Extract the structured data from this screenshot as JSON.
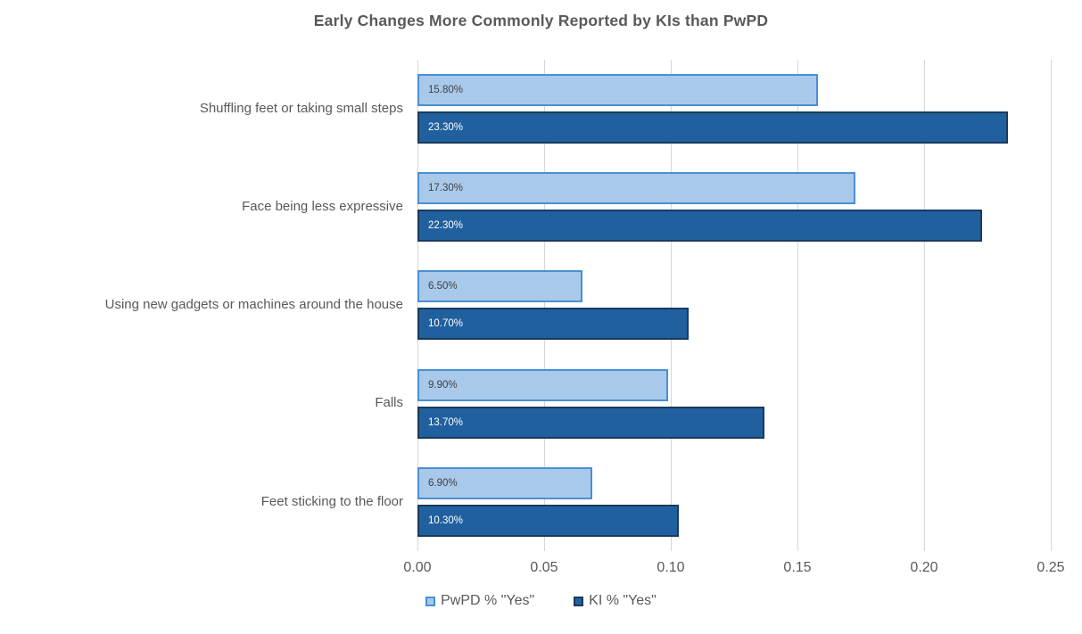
{
  "chart_data": {
    "type": "bar",
    "orientation": "horizontal",
    "title": "Early Changes More Commonly Reported by KIs than PwPD",
    "categories": [
      "Shuffling feet or taking small steps",
      "Face being less expressive",
      "Using new gadgets or machines around the house",
      "Falls",
      "Feet sticking to the floor"
    ],
    "series": [
      {
        "name": "PwPD % \"Yes\"",
        "values": [
          0.158,
          0.173,
          0.065,
          0.099,
          0.069
        ],
        "data_labels": [
          "15.80%",
          "17.30%",
          "6.50%",
          "9.90%",
          "6.90%"
        ],
        "fill": "#A9C9EA",
        "border": "#4A8FD3",
        "label_color": "#404040"
      },
      {
        "name": "KI % \"Yes\"",
        "values": [
          0.233,
          0.223,
          0.107,
          0.137,
          0.103
        ],
        "data_labels": [
          "23.30%",
          "22.30%",
          "10.70%",
          "13.70%",
          "10.30%"
        ],
        "fill": "#21609F",
        "border": "#1A3A5C",
        "label_color": "#FFFFFF"
      }
    ],
    "xlim": [
      0,
      0.25
    ],
    "x_ticks": [
      "0.00",
      "0.05",
      "0.10",
      "0.15",
      "0.20",
      "0.25"
    ],
    "grid": "vertical-only",
    "grid_color": "#D6D6D6",
    "text_color": "#595959",
    "legend_position": "bottom-center",
    "background": "#FFFFFF"
  }
}
